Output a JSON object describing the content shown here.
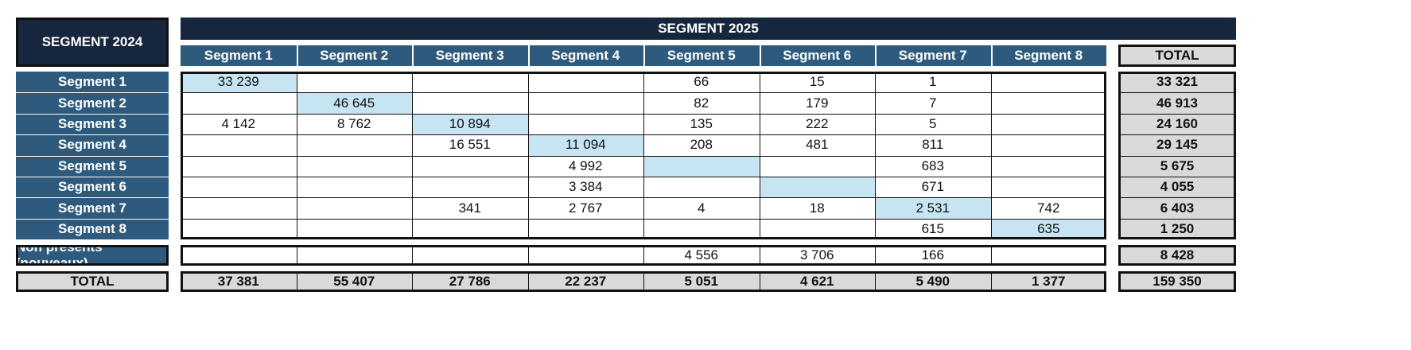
{
  "header": {
    "segment_2024": "SEGMENT 2024",
    "segment_2025": "SEGMENT 2025",
    "total_label": "TOTAL"
  },
  "columns": [
    "Segment 1",
    "Segment 2",
    "Segment 3",
    "Segment 4",
    "Segment 5",
    "Segment 6",
    "Segment 7",
    "Segment 8"
  ],
  "rows": [
    {
      "label": "Segment 1",
      "cells": [
        "33 239",
        "",
        "",
        "",
        "66",
        "15",
        "1",
        ""
      ],
      "total": "33 321"
    },
    {
      "label": "Segment 2",
      "cells": [
        "",
        "46 645",
        "",
        "",
        "82",
        "179",
        "7",
        ""
      ],
      "total": "46 913"
    },
    {
      "label": "Segment 3",
      "cells": [
        "4 142",
        "8 762",
        "10 894",
        "",
        "135",
        "222",
        "5",
        ""
      ],
      "total": "24 160"
    },
    {
      "label": "Segment 4",
      "cells": [
        "",
        "",
        "16 551",
        "11 094",
        "208",
        "481",
        "811",
        ""
      ],
      "total": "29 145"
    },
    {
      "label": "Segment 5",
      "cells": [
        "",
        "",
        "",
        "4 992",
        "",
        "",
        "683",
        ""
      ],
      "total": "5 675"
    },
    {
      "label": "Segment 6",
      "cells": [
        "",
        "",
        "",
        "3 384",
        "",
        "",
        "671",
        ""
      ],
      "total": "4 055"
    },
    {
      "label": "Segment 7",
      "cells": [
        "",
        "",
        "341",
        "2 767",
        "4",
        "18",
        "2 531",
        "742"
      ],
      "total": "6 403"
    },
    {
      "label": "Segment 8",
      "cells": [
        "",
        "",
        "",
        "",
        "",
        "",
        "615",
        "635"
      ],
      "total": "1 250"
    }
  ],
  "new_row": {
    "label": "Non présents (nouveaux)",
    "cells": [
      "",
      "",
      "",
      "",
      "4 556",
      "3 706",
      "166",
      ""
    ],
    "total": "8 428"
  },
  "total_row": {
    "label": "TOTAL",
    "cells": [
      "37 381",
      "55 407",
      "27 786",
      "22 237",
      "5 051",
      "4 621",
      "5 490",
      "1 377"
    ],
    "total": "159 350"
  },
  "colors": {
    "dark_header": "#15263d",
    "segment_blue": "#2e5b7d",
    "diagonal": "#c6e4f2",
    "total_grey": "#d9d9d9"
  }
}
